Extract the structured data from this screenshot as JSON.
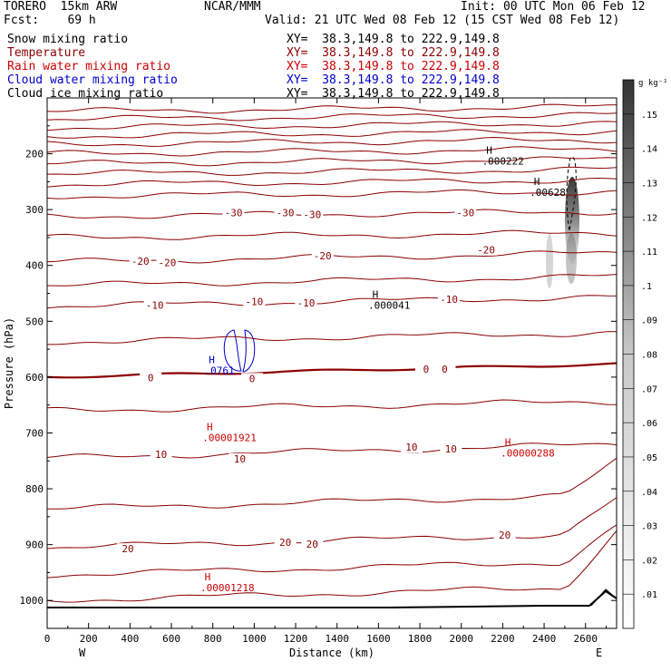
{
  "header": {
    "model": "TORERO  15km ARW",
    "center": "NCAR/MMM",
    "init": "Init: 00 UTC Mon 06 Feb 12",
    "fcst": "Fcst:    69 h",
    "valid": "Valid: 21 UTC Wed 08 Feb 12 (15 CST Wed 08 Feb 12)"
  },
  "fields": [
    {
      "name": "Snow mixing ratio",
      "color": "#000000",
      "xy": "XY=  38.3,149.8 to 222.9,149.8"
    },
    {
      "name": "Temperature",
      "color": "#8b0000",
      "xy": "XY=  38.3,149.8 to 222.9,149.8"
    },
    {
      "name": "Rain water mixing ratio",
      "color": "#cc0000",
      "xy": "XY=  38.3,149.8 to 222.9,149.8"
    },
    {
      "name": "Cloud water mixing ratio",
      "color": "#0000cc",
      "xy": "XY=  38.3,149.8 to 222.9,149.8"
    },
    {
      "name": "Cloud ice mixing ratio",
      "color": "#000000",
      "xy": "XY=  38.3,149.8 to 222.9,149.8"
    }
  ],
  "chart_data": {
    "type": "contour-cross-section",
    "xlabel": "Distance (km)",
    "ylabel": "Pressure (hPa)",
    "xlim": [
      0,
      2750
    ],
    "ylim": [
      1050,
      100
    ],
    "x_ticks": [
      0,
      200,
      400,
      600,
      800,
      1000,
      1200,
      1400,
      1600,
      1800,
      2000,
      2200,
      2400,
      2600
    ],
    "y_ticks": [
      200,
      300,
      400,
      500,
      600,
      700,
      800,
      900,
      1000
    ],
    "x_end_labels": {
      "left": "W",
      "right": "E"
    },
    "temperature_levels_c": [
      30,
      25,
      20,
      15,
      10,
      5,
      0,
      -5,
      -10,
      -15,
      -20,
      -25,
      -30,
      -35,
      -40,
      -45,
      -50,
      -55,
      -60,
      -65,
      -70,
      -75,
      -80
    ],
    "temperature_labels": [
      {
        "x": 900,
        "p": 307,
        "text": "-30"
      },
      {
        "x": 1150,
        "p": 307,
        "text": "-30"
      },
      {
        "x": 1280,
        "p": 310,
        "text": "-30"
      },
      {
        "x": 2020,
        "p": 307,
        "text": "-30"
      },
      {
        "x": 450,
        "p": 394,
        "text": "-20"
      },
      {
        "x": 580,
        "p": 396,
        "text": "-20"
      },
      {
        "x": 1330,
        "p": 384,
        "text": "-20"
      },
      {
        "x": 2120,
        "p": 374,
        "text": "-20"
      },
      {
        "x": 520,
        "p": 473,
        "text": "-10"
      },
      {
        "x": 1000,
        "p": 466,
        "text": "-10"
      },
      {
        "x": 1250,
        "p": 469,
        "text": "-10"
      },
      {
        "x": 1940,
        "p": 462,
        "text": "-10"
      },
      {
        "x": 500,
        "p": 603,
        "text": "0"
      },
      {
        "x": 990,
        "p": 604,
        "text": "0"
      },
      {
        "x": 1830,
        "p": 587,
        "text": "0"
      },
      {
        "x": 1920,
        "p": 587,
        "text": "0"
      },
      {
        "x": 550,
        "p": 740,
        "text": "10"
      },
      {
        "x": 930,
        "p": 748,
        "text": "10"
      },
      {
        "x": 1760,
        "p": 727,
        "text": "10"
      },
      {
        "x": 1950,
        "p": 730,
        "text": "10"
      },
      {
        "x": 390,
        "p": 909,
        "text": "20"
      },
      {
        "x": 1150,
        "p": 897,
        "text": "20"
      },
      {
        "x": 1280,
        "p": 901,
        "text": "20"
      },
      {
        "x": 2210,
        "p": 884,
        "text": "20"
      }
    ],
    "maxima_labels": [
      {
        "x": 2100,
        "p": 200,
        "field": "snow",
        "value": ".000222",
        "color": "#000000"
      },
      {
        "x": 2330,
        "p": 256,
        "field": "cloud_ice",
        "value": ".00628",
        "color": "#000000"
      },
      {
        "x": 1550,
        "p": 458,
        "field": "snow",
        "value": ".000041",
        "color": "#000000"
      },
      {
        "x": 760,
        "p": 575,
        "field": "cloud_water",
        "value": ".0761",
        "color": "#0000cc"
      },
      {
        "x": 750,
        "p": 695,
        "field": "rain",
        "value": ".00001921",
        "color": "#cc0000"
      },
      {
        "x": 2190,
        "p": 723,
        "field": "rain",
        "value": ".00000288",
        "color": "#cc0000"
      },
      {
        "x": 740,
        "p": 964,
        "field": "rain",
        "value": ".00001218",
        "color": "#cc0000"
      }
    ],
    "colorbar": {
      "units": "g kg⁻¹",
      "ticks": [
        ".01",
        ".02",
        ".03",
        ".04",
        ".05",
        ".06",
        ".07",
        ".08",
        ".09",
        ".1",
        ".11",
        ".12",
        ".13",
        ".14",
        ".15"
      ]
    }
  },
  "colors": {
    "temperature": "#8b0000",
    "rain": "#cc0000",
    "cloud_water": "#0000cc",
    "snow": "#000000",
    "terrain": "#000000"
  }
}
